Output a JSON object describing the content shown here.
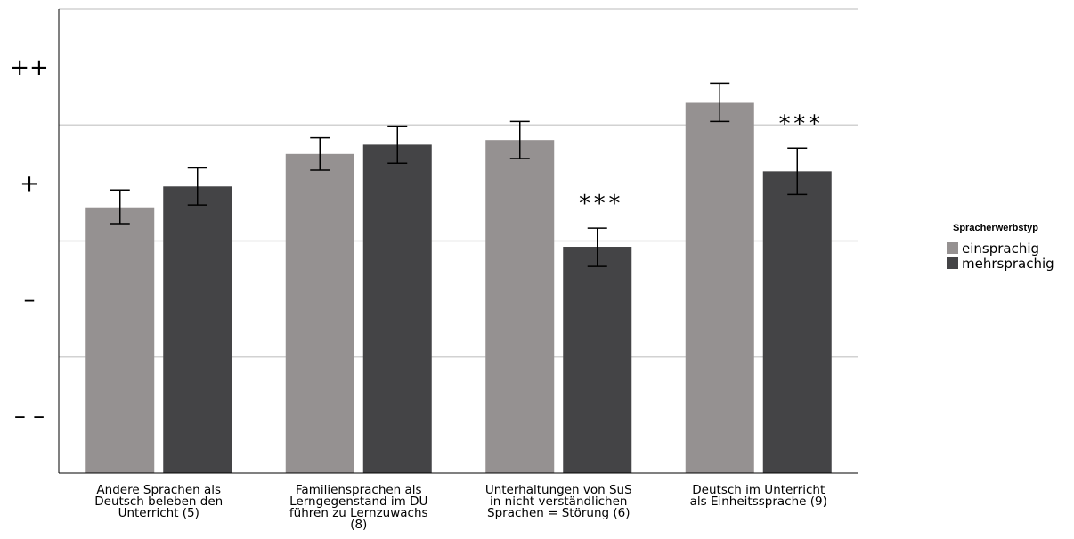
{
  "chart_data": {
    "type": "bar",
    "title": "",
    "xlabel": "",
    "ylabel": "",
    "ylim": [
      0,
      4
    ],
    "y_ticks": [
      {
        "value": 3.5,
        "label": "++"
      },
      {
        "value": 2.5,
        "label": "+"
      },
      {
        "value": 1.5,
        "label": "–"
      },
      {
        "value": 0.5,
        "label": "– –"
      }
    ],
    "grid": true,
    "categories": [
      [
        "Andere Sprachen als",
        "Deutsch beleben den",
        "Unterricht (5)"
      ],
      [
        "Familiensprachen als",
        "Lerngegenstand im DU",
        "führen zu Lernzuwachs",
        "(8)"
      ],
      [
        "Unterhaltungen von SuS",
        "in nicht verständlichen",
        "Sprachen = Störung (6)"
      ],
      [
        "Deutsch im Unterricht",
        "als Einheitssprache (9)"
      ]
    ],
    "legend": {
      "title": "Spracherwerbstyp",
      "position": "right"
    },
    "series": [
      {
        "name": "einsprachig",
        "color": "#959191",
        "values": [
          2.29,
          2.75,
          2.87,
          3.19
        ],
        "err_low": [
          2.15,
          2.61,
          2.71,
          3.03
        ],
        "err_high": [
          2.44,
          2.89,
          3.03,
          3.36
        ]
      },
      {
        "name": "mehrsprachig",
        "color": "#444446",
        "values": [
          2.47,
          2.83,
          1.95,
          2.6
        ],
        "err_low": [
          2.31,
          2.67,
          1.78,
          2.4
        ],
        "err_high": [
          2.63,
          2.99,
          2.11,
          2.8
        ]
      }
    ],
    "annotations": [
      {
        "category_index": 2,
        "text": "***"
      },
      {
        "category_index": 3,
        "text": "***"
      }
    ]
  }
}
